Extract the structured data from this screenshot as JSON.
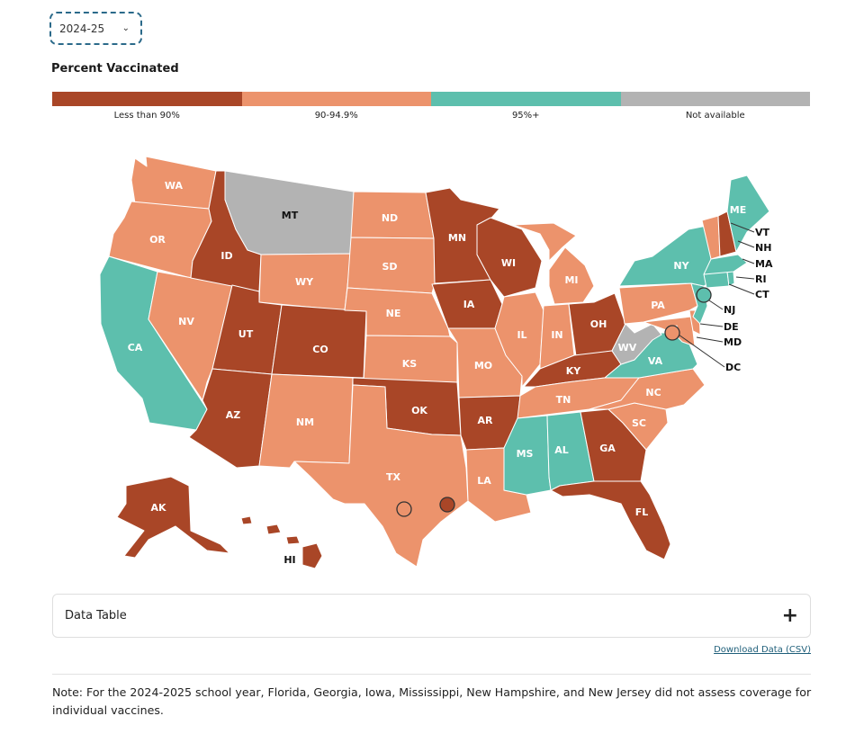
{
  "year_select": {
    "value": "2024-25",
    "chevron": "chevron-down-icon"
  },
  "legend": {
    "title": "Percent Vaccinated",
    "categories": [
      {
        "label": "Less than 90%",
        "color": "#a94627"
      },
      {
        "label": "90-94.9%",
        "color": "#ec936c"
      },
      {
        "label": "95%+",
        "color": "#5dbfad"
      },
      {
        "label": "Not available",
        "color": "#b3b3b3"
      }
    ]
  },
  "map": {
    "categories_by_state": {
      "AK": "Less than 90%",
      "AL": "95%+",
      "AR": "Less than 90%",
      "AZ": "Less than 90%",
      "CA": "95%+",
      "CO": "Less than 90%",
      "CT": "95%+",
      "DC": "90-94.9%",
      "DE": "90-94.9%",
      "FL": "Less than 90%",
      "GA": "Less than 90%",
      "HI": "Less than 90%",
      "IA": "Less than 90%",
      "ID": "Less than 90%",
      "IL": "90-94.9%",
      "IN": "90-94.9%",
      "KS": "90-94.9%",
      "KY": "Less than 90%",
      "LA": "90-94.9%",
      "MA": "95%+",
      "MD": "90-94.9%",
      "ME": "95%+",
      "MI": "90-94.9%",
      "MN": "Less than 90%",
      "MO": "90-94.9%",
      "MS": "95%+",
      "MT": "Not available",
      "NC": "90-94.9%",
      "ND": "90-94.9%",
      "NE": "90-94.9%",
      "NH": "Less than 90%",
      "NJ": "95%+",
      "NM": "90-94.9%",
      "NV": "90-94.9%",
      "NY": "95%+",
      "OH": "Less than 90%",
      "OK": "Less than 90%",
      "OR": "90-94.9%",
      "PA": "90-94.9%",
      "RI": "95%+",
      "SC": "90-94.9%",
      "SD": "90-94.9%",
      "TN": "90-94.9%",
      "TX": "90-94.9%",
      "UT": "Less than 90%",
      "VA": "95%+",
      "VT": "90-94.9%",
      "WA": "90-94.9%",
      "WI": "Less than 90%",
      "WV": "Not available",
      "WY": "90-94.9%"
    },
    "city_markers": [
      {
        "name": "",
        "category": "90-94.9%"
      },
      {
        "name": "",
        "category": "Less than 90%"
      }
    ]
  },
  "data_table": {
    "label": "Data Table",
    "toggle_icon": "plus-icon"
  },
  "download_link": "Download Data (CSV)",
  "note": "Note: For the 2024-2025 school year, Florida, Georgia, Iowa, Mississippi, New Hampshire, and New Jersey did not assess coverage for individual vaccines."
}
